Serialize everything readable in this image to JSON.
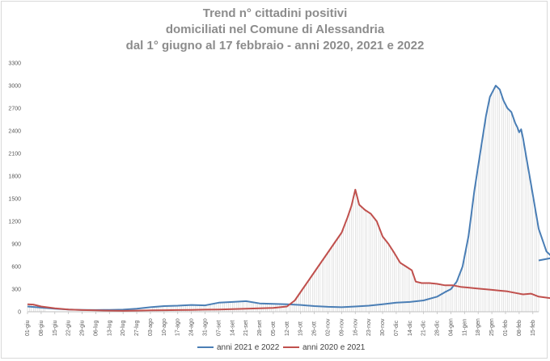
{
  "chart_data": {
    "type": "line",
    "title": [
      "Trend n° cittadini positivi",
      "domiciliati nel Comune di Alessandria",
      "dal 1° giugno al 17 febbraio - anni 2020, 2021 e 2022"
    ],
    "xlabel": "",
    "ylabel": "",
    "ylim": [
      0,
      3300
    ],
    "yticks": [
      0,
      300,
      600,
      900,
      1200,
      1500,
      1800,
      2100,
      2400,
      2700,
      3000,
      3300
    ],
    "x_tick_labels": [
      "01-giu",
      "08-giu",
      "15-giu",
      "22-giu",
      "29-giu",
      "06-lug",
      "13-lug",
      "20-lug",
      "27-lug",
      "03-ago",
      "10-ago",
      "17-ago",
      "24-ago",
      "31-ago",
      "07-set",
      "14-set",
      "21-set",
      "28-set",
      "05-ott",
      "12-ott",
      "19-ott",
      "26-ott",
      "02-nov",
      "09-nov",
      "16-nov",
      "23-nov",
      "30-nov",
      "07-dic",
      "14-dic",
      "21-dic",
      "28-dic",
      "04-gen",
      "11-gen",
      "18-gen",
      "25-gen",
      "01-feb",
      "08-feb",
      "15-feb"
    ],
    "x_total_days": 262,
    "grid": false,
    "legend_position": "bottom",
    "series": [
      {
        "name": "anni 2021 e 2022",
        "color": "#4a7eb5",
        "points": [
          [
            0,
            70
          ],
          [
            7,
            55
          ],
          [
            14,
            40
          ],
          [
            21,
            30
          ],
          [
            28,
            25
          ],
          [
            35,
            22
          ],
          [
            42,
            25
          ],
          [
            49,
            28
          ],
          [
            56,
            40
          ],
          [
            63,
            60
          ],
          [
            70,
            75
          ],
          [
            77,
            80
          ],
          [
            84,
            90
          ],
          [
            91,
            85
          ],
          [
            98,
            120
          ],
          [
            105,
            130
          ],
          [
            112,
            140
          ],
          [
            119,
            110
          ],
          [
            126,
            105
          ],
          [
            133,
            100
          ],
          [
            140,
            90
          ],
          [
            147,
            75
          ],
          [
            154,
            65
          ],
          [
            161,
            60
          ],
          [
            168,
            70
          ],
          [
            175,
            80
          ],
          [
            182,
            100
          ],
          [
            189,
            120
          ],
          [
            196,
            130
          ],
          [
            203,
            150
          ],
          [
            210,
            200
          ],
          [
            214,
            260
          ],
          [
            217,
            300
          ],
          [
            220,
            400
          ],
          [
            223,
            600
          ],
          [
            226,
            1000
          ],
          [
            229,
            1600
          ],
          [
            232,
            2100
          ],
          [
            235,
            2600
          ],
          [
            237,
            2850
          ],
          [
            239,
            2950
          ],
          [
            240,
            3000
          ],
          [
            242,
            2950
          ],
          [
            244,
            2800
          ],
          [
            246,
            2700
          ],
          [
            248,
            2650
          ],
          [
            250,
            2500
          ],
          [
            251,
            2450
          ],
          [
            252,
            2380
          ],
          [
            253,
            2420
          ],
          [
            254,
            2300
          ],
          [
            256,
            2000
          ],
          [
            258,
            1700
          ],
          [
            260,
            1400
          ],
          [
            262,
            1100
          ],
          [
            264,
            950
          ],
          [
            266,
            800
          ],
          [
            268,
            750
          ],
          [
            270,
            720
          ],
          [
            262,
            680
          ]
        ]
      },
      {
        "name": "anni 2020 e 2021",
        "color": "#c0504d",
        "points": [
          [
            0,
            100
          ],
          [
            3,
            95
          ],
          [
            7,
            70
          ],
          [
            14,
            45
          ],
          [
            21,
            30
          ],
          [
            28,
            22
          ],
          [
            35,
            18
          ],
          [
            42,
            15
          ],
          [
            49,
            12
          ],
          [
            56,
            15
          ],
          [
            63,
            18
          ],
          [
            70,
            20
          ],
          [
            77,
            22
          ],
          [
            84,
            25
          ],
          [
            91,
            28
          ],
          [
            98,
            30
          ],
          [
            105,
            35
          ],
          [
            112,
            40
          ],
          [
            119,
            45
          ],
          [
            126,
            50
          ],
          [
            133,
            70
          ],
          [
            137,
            150
          ],
          [
            141,
            300
          ],
          [
            145,
            450
          ],
          [
            149,
            600
          ],
          [
            153,
            750
          ],
          [
            157,
            900
          ],
          [
            161,
            1050
          ],
          [
            164,
            1250
          ],
          [
            166,
            1400
          ],
          [
            168,
            1620
          ],
          [
            170,
            1420
          ],
          [
            173,
            1350
          ],
          [
            176,
            1300
          ],
          [
            179,
            1200
          ],
          [
            182,
            1000
          ],
          [
            185,
            900
          ],
          [
            188,
            780
          ],
          [
            191,
            650
          ],
          [
            194,
            600
          ],
          [
            197,
            550
          ],
          [
            199,
            400
          ],
          [
            202,
            380
          ],
          [
            206,
            380
          ],
          [
            210,
            370
          ],
          [
            214,
            350
          ],
          [
            218,
            350
          ],
          [
            222,
            330
          ],
          [
            226,
            320
          ],
          [
            230,
            310
          ],
          [
            234,
            300
          ],
          [
            238,
            290
          ],
          [
            242,
            280
          ],
          [
            246,
            270
          ],
          [
            250,
            250
          ],
          [
            254,
            230
          ],
          [
            258,
            240
          ],
          [
            262,
            200
          ],
          [
            268,
            180
          ],
          [
            272,
            165
          ]
        ]
      }
    ]
  }
}
